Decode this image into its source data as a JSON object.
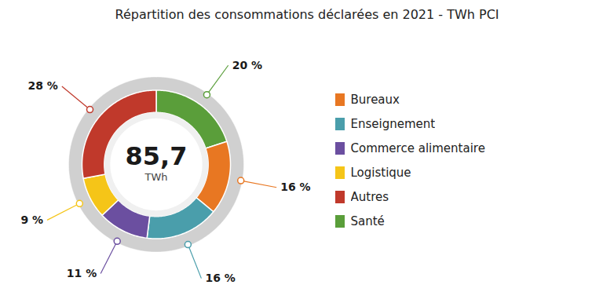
{
  "chart_data": {
    "type": "pie",
    "title": "Répartition des consommations déclarées en 2021 - TWh PCI",
    "categories": [
      "Santé",
      "Bureaux",
      "Enseignement",
      "Commerce alimentaire",
      "Logistique",
      "Autres"
    ],
    "values": [
      20,
      16,
      16,
      11,
      9,
      28
    ],
    "value_labels": [
      "20 %",
      "16 %",
      "16 %",
      "11 %",
      "9 %",
      "28 %"
    ],
    "colors": [
      "#5a9e3a",
      "#e87722",
      "#4a9eab",
      "#6b4fa0",
      "#f5c518",
      "#c0392b"
    ],
    "data_labels": true,
    "annotations": [
      "85,7",
      "TWh"
    ],
    "legend": "right",
    "legend_entries": [
      "Bureaux",
      "Enseignement",
      "Commerce alimentaire",
      "Logistique",
      "Autres",
      "Santé"
    ]
  }
}
